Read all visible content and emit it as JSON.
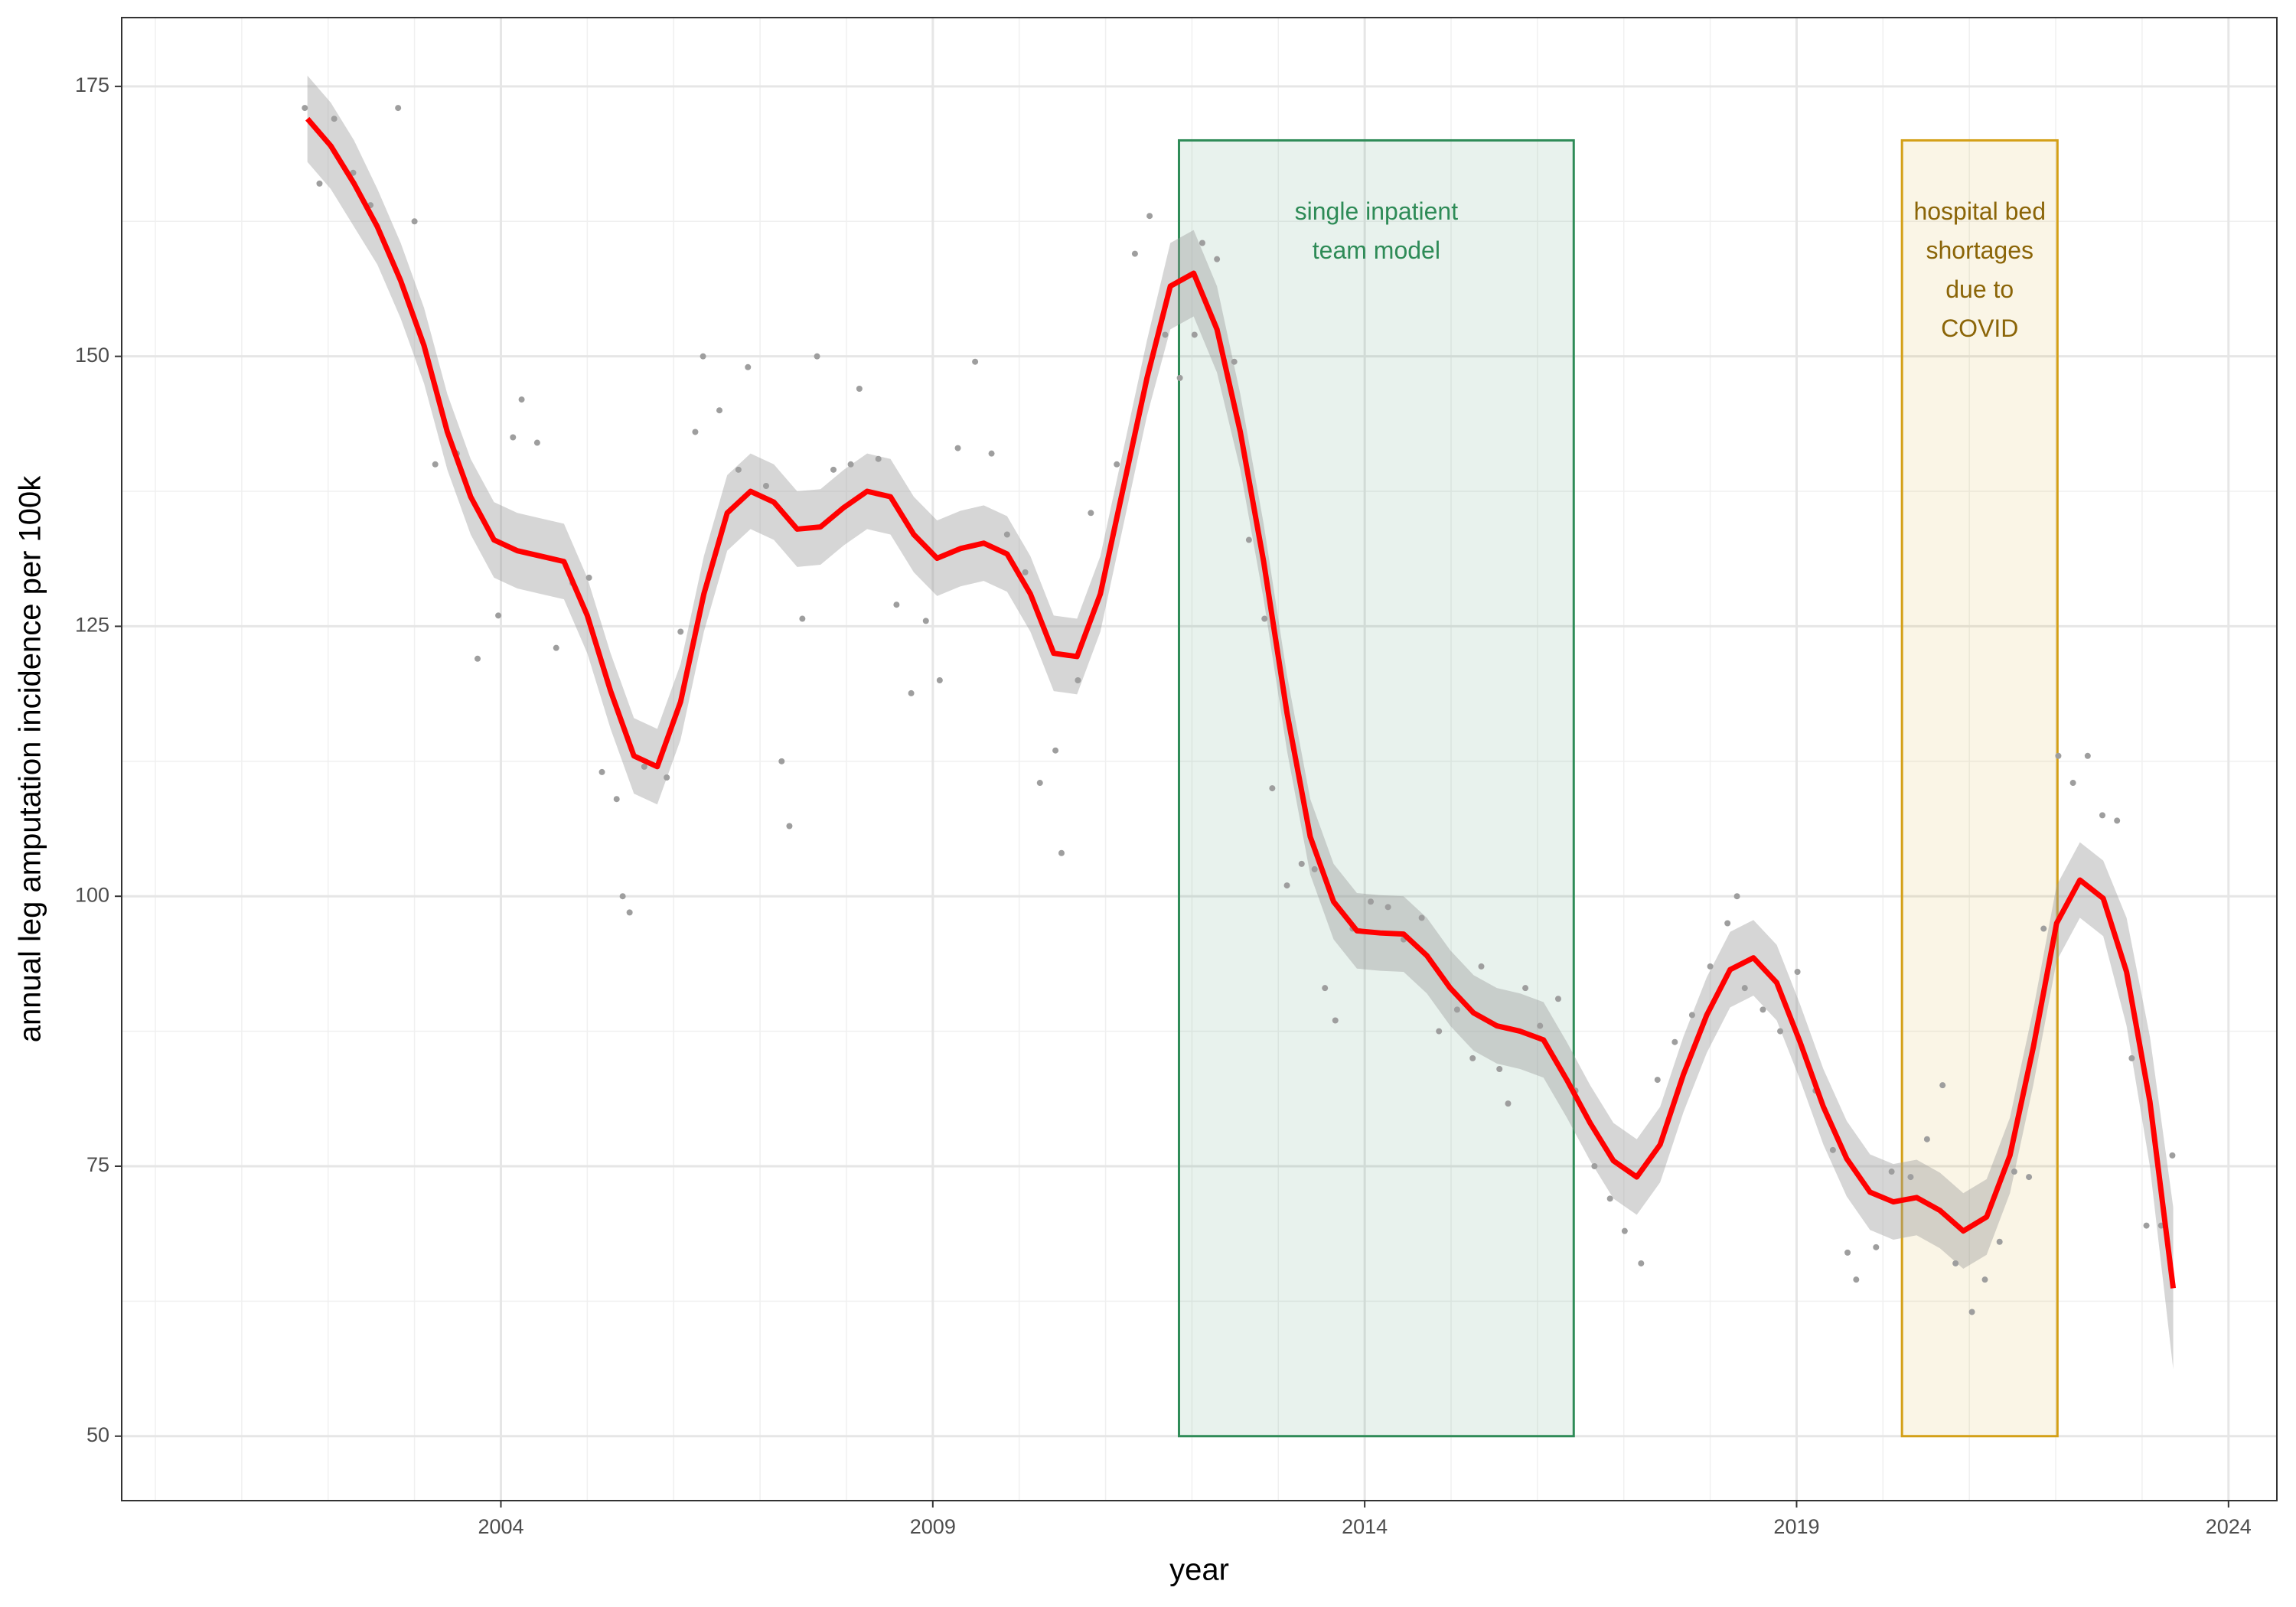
{
  "chart_data": {
    "type": "line",
    "xlabel": "year",
    "ylabel": "annual leg amputation incidence per 100k",
    "xlim": [
      1999.61,
      2024.56
    ],
    "ylim": [
      44.03,
      181.37
    ],
    "xticks": [
      2004,
      2009,
      2014,
      2019,
      2024
    ],
    "yticks": [
      50,
      75,
      100,
      125,
      150,
      175
    ],
    "xminorticks": [
      2000,
      2001,
      2002,
      2003,
      2005,
      2006,
      2007,
      2008,
      2010,
      2011,
      2012,
      2013,
      2015,
      2016,
      2017,
      2018,
      2020,
      2021,
      2022,
      2023
    ],
    "yminorticks": [
      62.5,
      87.5,
      112.5,
      137.5,
      162.5
    ],
    "grid": true,
    "color": "#ff0000",
    "x": [
      2001.76,
      2002.03,
      2002.3,
      2002.57,
      2002.84,
      2003.11,
      2003.38,
      2003.65,
      2003.92,
      2004.19,
      2004.46,
      2004.73,
      2005.0,
      2005.27,
      2005.54,
      2005.81,
      2006.08,
      2006.35,
      2006.62,
      2006.89,
      2007.16,
      2007.43,
      2007.7,
      2007.97,
      2008.24,
      2008.51,
      2008.78,
      2009.05,
      2009.32,
      2009.59,
      2009.86,
      2010.13,
      2010.4,
      2010.67,
      2010.94,
      2011.21,
      2011.48,
      2011.75,
      2012.02,
      2012.29,
      2012.56,
      2012.83,
      2013.1,
      2013.37,
      2013.64,
      2013.91,
      2014.18,
      2014.45,
      2014.72,
      2014.99,
      2015.26,
      2015.53,
      2015.8,
      2016.07,
      2016.34,
      2016.61,
      2016.88,
      2017.15,
      2017.42,
      2017.69,
      2017.96,
      2018.23,
      2018.5,
      2018.77,
      2019.04,
      2019.31,
      2019.58,
      2019.85,
      2020.12,
      2020.39,
      2020.66,
      2020.93,
      2021.2,
      2021.47,
      2021.74,
      2022.01,
      2022.28,
      2022.55,
      2022.82,
      2023.09,
      2023.36
    ],
    "values": [
      172,
      169.5,
      166,
      162,
      157,
      151,
      143,
      137,
      133,
      132,
      131.5,
      131,
      126,
      119,
      113,
      112,
      118,
      128,
      135.5,
      137.5,
      136.5,
      134,
      134.2,
      136,
      137.5,
      137,
      133.5,
      131.3,
      132.2,
      132.7,
      131.7,
      128,
      122.5,
      122.2,
      128,
      138,
      148,
      156.5,
      157.7,
      152.5,
      143,
      131,
      117,
      105.5,
      99.5,
      96.8,
      96.6,
      96.5,
      94.5,
      91.5,
      89.2,
      88,
      87.5,
      86.7,
      83,
      79,
      75.5,
      74,
      77,
      83.5,
      89,
      93.2,
      94.3,
      92,
      86.5,
      80.5,
      75.7,
      72.6,
      71.7,
      72.1,
      70.9,
      69,
      70.3,
      76,
      86,
      97.5,
      101.5,
      99.8,
      93,
      81,
      63.7
    ],
    "ribbon": {
      "color": "#999999",
      "lower": [
        168,
        165.5,
        162,
        158.5,
        153.5,
        147.5,
        139.5,
        133.5,
        129.5,
        128.5,
        128,
        127.5,
        122.5,
        115.5,
        109.5,
        108.5,
        114.5,
        124.5,
        132,
        134,
        133,
        130.5,
        130.7,
        132.5,
        134,
        133.5,
        130,
        127.8,
        128.7,
        129.2,
        128.2,
        124.5,
        119,
        118.7,
        124.5,
        134.5,
        144.5,
        152.5,
        153.7,
        148.5,
        139.5,
        127.5,
        113.5,
        102,
        96,
        93.3,
        93.1,
        93,
        91,
        88,
        85.7,
        84.5,
        84,
        83.2,
        79.5,
        75.5,
        72,
        70.5,
        73.5,
        80,
        85.5,
        89.7,
        90.8,
        88.5,
        83,
        77,
        72.2,
        69.1,
        68.2,
        68.6,
        67.4,
        65.5,
        66.8,
        72.5,
        82.5,
        94,
        98,
        96.3,
        88,
        75,
        56.2
      ],
      "upper": [
        176,
        173.5,
        170,
        165.5,
        160.5,
        154.5,
        146.5,
        140.5,
        136.5,
        135.5,
        135,
        134.5,
        129.5,
        122.5,
        116.5,
        115.5,
        121.5,
        131.5,
        139,
        141,
        140,
        137.5,
        137.7,
        139.5,
        141,
        140.5,
        137,
        134.8,
        135.7,
        136.2,
        135.2,
        131.5,
        126,
        125.7,
        131.5,
        141.5,
        151.5,
        160.5,
        161.7,
        156.5,
        146.5,
        134.5,
        120.5,
        109,
        103,
        100.3,
        100.1,
        100,
        98,
        95,
        92.7,
        91.5,
        91,
        90.2,
        86.5,
        82.5,
        79,
        77.5,
        80.5,
        87,
        92.5,
        96.7,
        97.8,
        95.5,
        90,
        84,
        79.2,
        76.1,
        75.2,
        75.6,
        74.4,
        72.5,
        73.8,
        79.5,
        89.5,
        101,
        105,
        103.3,
        98,
        87,
        71.2
      ]
    },
    "points": {
      "color": "#9e9e9e",
      "x": [
        2001.73,
        2001.9,
        2002.07,
        2002.29,
        2002.49,
        2002.81,
        2003.0,
        2003.24,
        2003.49,
        2003.73,
        2003.97,
        2004.14,
        2004.24,
        2004.42,
        2004.64,
        2004.83,
        2005.02,
        2005.17,
        2005.34,
        2005.49,
        2005.41,
        2005.66,
        2005.92,
        2006.08,
        2006.25,
        2006.34,
        2006.53,
        2006.75,
        2006.86,
        2007.07,
        2007.25,
        2007.34,
        2007.49,
        2007.66,
        2007.85,
        2008.05,
        2008.15,
        2008.37,
        2008.58,
        2008.75,
        2008.92,
        2009.08,
        2009.29,
        2009.49,
        2009.68,
        2009.86,
        2010.07,
        2010.24,
        2010.42,
        2010.49,
        2010.68,
        2010.83,
        2011.13,
        2011.34,
        2011.51,
        2011.69,
        2011.86,
        2012.03,
        2012.12,
        2012.29,
        2012.49,
        2012.66,
        2012.84,
        2012.93,
        2013.1,
        2013.27,
        2013.42,
        2013.54,
        2013.66,
        2013.86,
        2014.07,
        2014.27,
        2014.45,
        2014.66,
        2014.86,
        2015.07,
        2015.25,
        2015.35,
        2015.56,
        2015.66,
        2015.86,
        2016.03,
        2016.24,
        2016.44,
        2016.66,
        2016.84,
        2017.01,
        2017.2,
        2017.39,
        2017.59,
        2017.79,
        2018.0,
        2018.2,
        2018.31,
        2018.4,
        2018.61,
        2018.81,
        2019.01,
        2019.22,
        2019.42,
        2019.59,
        2019.69,
        2019.92,
        2020.1,
        2020.32,
        2020.51,
        2020.69,
        2020.84,
        2021.03,
        2021.18,
        2021.35,
        2021.52,
        2021.69,
        2021.86,
        2022.03,
        2022.2,
        2022.37,
        2022.54,
        2022.71,
        2022.88,
        2023.05,
        2023.22,
        2023.35
      ],
      "y": [
        173,
        166,
        172,
        167,
        164,
        173,
        162.5,
        140,
        141,
        122,
        126,
        142.5,
        146,
        142,
        123,
        129,
        129.5,
        111.5,
        109,
        98.5,
        100,
        112,
        111,
        124.5,
        143,
        150,
        145,
        139.5,
        149,
        138,
        112.5,
        106.5,
        125.7,
        150,
        139.5,
        140,
        147,
        140.5,
        127,
        118.8,
        125.5,
        120,
        141.5,
        149.5,
        141,
        133.5,
        130,
        110.5,
        113.5,
        104,
        120,
        135.5,
        140,
        159.5,
        163,
        152,
        148,
        152,
        160.5,
        159,
        149.5,
        133,
        125.7,
        110,
        101,
        103,
        102.5,
        91.5,
        88.5,
        97,
        99.5,
        99,
        96,
        98,
        87.5,
        89.5,
        85,
        93.5,
        84,
        80.8,
        91.5,
        88,
        90.5,
        82,
        75,
        72,
        69,
        66,
        83,
        86.5,
        89,
        93.5,
        97.5,
        100,
        91.5,
        89.5,
        87.5,
        93,
        82,
        76.5,
        67,
        64.5,
        67.5,
        74.5,
        74,
        77.5,
        82.5,
        66,
        61.5,
        64.5,
        68,
        74.5,
        74,
        97,
        113,
        110.5,
        113,
        107.5,
        107,
        85,
        69.5,
        69.5,
        76
      ]
    },
    "regions": [
      {
        "xmin": 2011.85,
        "xmax": 2016.42,
        "ymin": 50,
        "ymax": 170,
        "color": "#2e8b57",
        "label_color": "#2e8b57",
        "label": [
          "single inpatient",
          "team model"
        ]
      },
      {
        "xmin": 2020.22,
        "xmax": 2022.02,
        "ymin": 50,
        "ymax": 170,
        "color": "#d4a017",
        "label_color": "#8b6508",
        "label": [
          "hospital bed",
          "shortages",
          "due to",
          "COVID"
        ]
      }
    ]
  }
}
